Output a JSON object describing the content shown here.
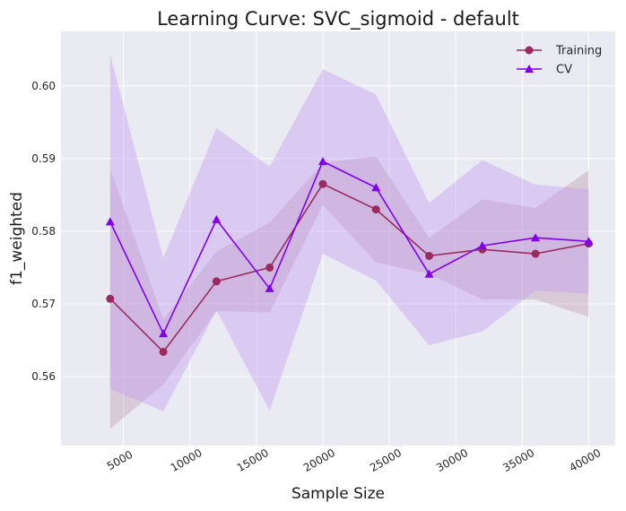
{
  "chart_data": {
    "type": "line",
    "title": "Learning Curve: SVC_sigmoid - default",
    "xlabel": "Sample Size",
    "ylabel": "f1_weighted",
    "xlim": [
      300,
      42000
    ],
    "ylim": [
      0.5505,
      0.6075
    ],
    "x_ticks": [
      5000,
      10000,
      15000,
      20000,
      25000,
      30000,
      35000,
      40000
    ],
    "y_ticks": [
      0.56,
      0.57,
      0.58,
      0.59,
      0.6
    ],
    "y_tick_labels": [
      "0.56",
      "0.57",
      "0.58",
      "0.59",
      "0.60"
    ],
    "grid": true,
    "legend_position": "top-right",
    "x": [
      4000,
      8000,
      12000,
      16000,
      20000,
      24000,
      28000,
      32000,
      36000,
      40000
    ],
    "series": [
      {
        "name": "Training",
        "marker": "circle",
        "color": "#9b2b5f",
        "band_color": "#b98fa8",
        "values": [
          0.5707,
          0.5634,
          0.5731,
          0.575,
          0.5865,
          0.583,
          0.5766,
          0.5775,
          0.5769,
          0.5783
        ],
        "lower": [
          0.5528,
          0.5589,
          0.569,
          0.5688,
          0.5836,
          0.5757,
          0.5741,
          0.5706,
          0.5706,
          0.5682
        ],
        "upper": [
          0.5886,
          0.5679,
          0.5772,
          0.5812,
          0.5894,
          0.5903,
          0.5791,
          0.5844,
          0.5832,
          0.5884
        ]
      },
      {
        "name": "CV",
        "marker": "triangle",
        "color": "#8000ee",
        "band_color": "#c39cf2",
        "values": [
          0.5813,
          0.5659,
          0.5816,
          0.5721,
          0.5896,
          0.586,
          0.5741,
          0.578,
          0.5791,
          0.5786
        ],
        "lower": [
          0.5583,
          0.5552,
          0.5691,
          0.5553,
          0.5769,
          0.5732,
          0.5643,
          0.5662,
          0.5718,
          0.5714
        ],
        "upper": [
          0.6043,
          0.5763,
          0.5942,
          0.5889,
          0.6023,
          0.5988,
          0.5839,
          0.5898,
          0.5864,
          0.5858
        ]
      }
    ]
  }
}
